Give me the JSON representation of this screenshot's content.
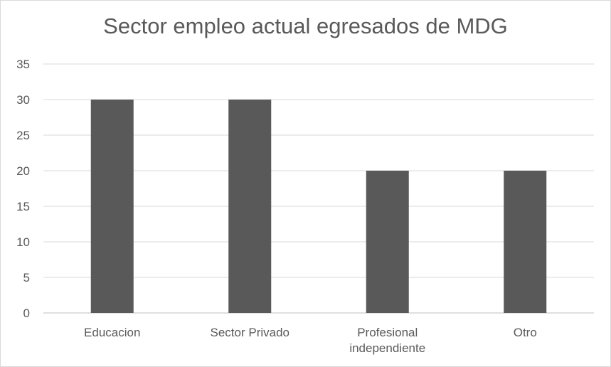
{
  "chart_data": {
    "type": "bar",
    "title": "Sector empleo actual egresados de MDG",
    "xlabel": "",
    "ylabel": "",
    "categories": [
      "Educacion",
      "Sector Privado",
      "Profesional independiente",
      "Otro"
    ],
    "category_label_lines": [
      [
        "Educacion"
      ],
      [
        "Sector Privado"
      ],
      [
        "Profesional",
        "independiente"
      ],
      [
        "Otro"
      ]
    ],
    "values": [
      30,
      30,
      20,
      20
    ],
    "ylim": [
      0,
      35
    ],
    "yticks": [
      0,
      5,
      10,
      15,
      20,
      25,
      30,
      35
    ],
    "grid": true,
    "legend": "none",
    "colors": {
      "bar": "#595959",
      "grid": "#d9d9d9",
      "text": "#595959"
    }
  }
}
